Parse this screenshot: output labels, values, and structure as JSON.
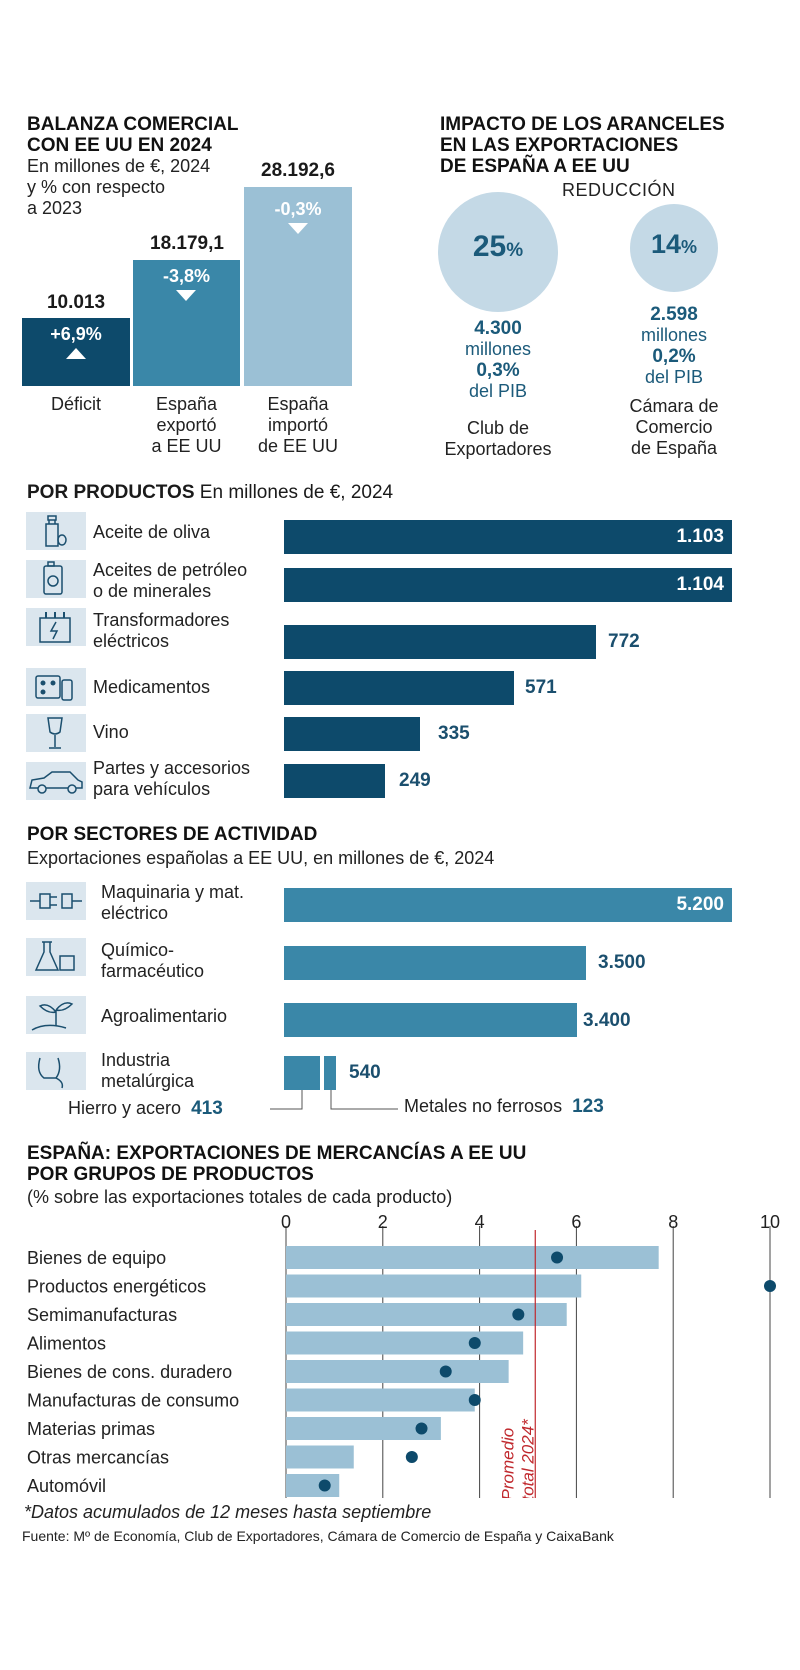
{
  "balanza": {
    "title_l1": "BALANZA COMERCIAL",
    "title_l2": "CON EE UU EN 2024",
    "sub_l1": "En millones de €, 2024",
    "sub_l2": "y % con respecto",
    "sub_l3": "a 2023",
    "bars": [
      {
        "value": "10.013",
        "pct": "+6,9%",
        "arrow": "up",
        "label_l1": "Déficit",
        "label_l2": "",
        "label_l3": "",
        "color": "#0d4a6b"
      },
      {
        "value": "18.179,1",
        "pct": "-3,8%",
        "arrow": "down",
        "label_l1": "España",
        "label_l2": "exportó",
        "label_l3": "a EE UU",
        "color": "#3a87a8"
      },
      {
        "value": "28.192,6",
        "pct": "-0,3%",
        "arrow": "down",
        "label_l1": "España",
        "label_l2": "importó",
        "label_l3": "de EE UU",
        "color": "#9bc0d5"
      }
    ]
  },
  "impacto": {
    "title_l1": "IMPACTO DE LOS ARANCELES",
    "title_l2": "EN LAS EXPORTACIONES",
    "title_l3": "DE ESPAÑA A EE UU",
    "reduccion": "REDUCCIÓN",
    "items": [
      {
        "pct_num": "25",
        "pct_sign": "%",
        "amount": "4.300",
        "unit": "millones",
        "pib_pct": "0,3%",
        "pib_label": "del PIB",
        "src_l1": "Club de",
        "src_l2": "Exportadores",
        "src_l3": ""
      },
      {
        "pct_num": "14",
        "pct_sign": "%",
        "amount": "2.598",
        "unit": "millones",
        "pib_pct": "0,2%",
        "pib_label": "del PIB",
        "src_l1": "Cámara de",
        "src_l2": "Comercio",
        "src_l3": "de España"
      }
    ]
  },
  "productos": {
    "title_bold": "POR PRODUCTOS",
    "title_rest": " En millones de €, 2024",
    "items": [
      {
        "l1": "Aceite de oliva",
        "l2": "",
        "value": "1.103",
        "icon": "olive-oil-icon"
      },
      {
        "l1": "Aceites de petróleo",
        "l2": "o de minerales",
        "value": "1.104",
        "icon": "oil-can-icon"
      },
      {
        "l1": "Transformadores",
        "l2": "eléctricos",
        "value": "772",
        "icon": "transformer-icon"
      },
      {
        "l1": "Medicamentos",
        "l2": "",
        "value": "571",
        "icon": "medicine-icon"
      },
      {
        "l1": "Vino",
        "l2": "",
        "value": "335",
        "icon": "wine-glass-icon"
      },
      {
        "l1": "Partes y accesorios",
        "l2": "para vehículos",
        "value": "249",
        "icon": "car-icon"
      }
    ]
  },
  "sectores": {
    "title": "POR SECTORES DE ACTIVIDAD",
    "sub": "Exportaciones españolas a EE UU, en millones de €, 2024",
    "items": [
      {
        "l1": "Maquinaria y mat.",
        "l2": "eléctrico",
        "value": "5.200",
        "icon": "plug-icon"
      },
      {
        "l1": "Químico-",
        "l2": "farmacéutico",
        "value": "3.500",
        "icon": "chemistry-icon"
      },
      {
        "l1": "Agroalimentario",
        "l2": "",
        "value": "3.400",
        "icon": "sprout-icon"
      },
      {
        "l1": "Industria",
        "l2": "metalúrgica",
        "value": "540",
        "icon": "ladle-icon"
      }
    ],
    "sub_hierro_label": "Hierro y acero",
    "sub_hierro_value": "413",
    "sub_metales_label": "Metales no ferrosos",
    "sub_metales_value": "123"
  },
  "chart_data": {
    "type": "bar",
    "title": "ESPAÑA: EXPORTACIONES DE MERCANCÍAS A EE UU",
    "title_l2": "POR GRUPOS DE PRODUCTOS",
    "subtitle": "(% sobre las exportaciones totales de cada producto)",
    "categories": [
      "Bienes de equipo",
      "Productos energéticos",
      "Semimanufacturas",
      "Alimentos",
      "Bienes de cons. duradero",
      "Manufacturas de consumo",
      "Materias primas",
      "Otras mercancías",
      "Automóvil"
    ],
    "series": [
      {
        "name": "Barras",
        "values": [
          7.7,
          6.1,
          5.8,
          4.9,
          4.6,
          3.9,
          3.2,
          1.4,
          1.1
        ]
      },
      {
        "name": "Puntos",
        "values": [
          5.6,
          10.0,
          4.8,
          3.9,
          3.3,
          3.9,
          2.8,
          2.6,
          0.8
        ]
      }
    ],
    "average": 5.15,
    "average_label_l1": "Promedio",
    "average_label_l2": "total 2024*",
    "xlim": [
      0,
      10
    ],
    "xticks": [
      "0",
      "2",
      "4",
      "6",
      "8",
      "10"
    ]
  },
  "footer": {
    "note": "*Datos acumulados de 12 meses hasta septiembre",
    "source": "Fuente: Mº de Economía, Club de Exportadores, Cámara de Comercio de España y CaixaBank"
  },
  "colors": {
    "dark": "#0d4a6b",
    "mid": "#3a87a8",
    "light": "#9bc0d5",
    "chartbar": "#9bc0d5",
    "red": "#c0282d",
    "circle": "#c4d9e6"
  }
}
